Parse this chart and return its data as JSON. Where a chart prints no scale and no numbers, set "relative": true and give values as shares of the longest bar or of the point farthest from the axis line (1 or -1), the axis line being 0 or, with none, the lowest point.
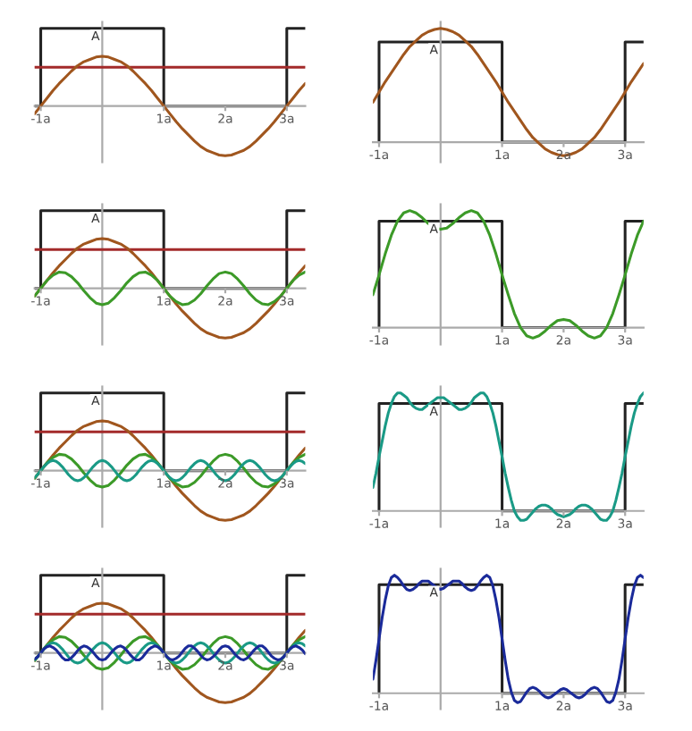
{
  "chart_data": [
    {
      "type": "line",
      "relative": true,
      "xlim": [
        -1.1,
        3.3
      ],
      "xticks": [
        {
          "value": -1,
          "label": "-1a"
        },
        {
          "value": 1,
          "label": "1a"
        },
        {
          "value": 2,
          "label": "2a"
        },
        {
          "value": 3,
          "label": "3a"
        }
      ],
      "annotations": [
        "A"
      ],
      "series": [
        {
          "color": "#222222",
          "x": [
            -1.1,
            -1,
            -1,
            1,
            1,
            3,
            3,
            3.3
          ],
          "values": [
            0,
            0,
            1,
            1,
            0,
            0,
            1,
            1
          ]
        },
        {
          "color": "#a32a2a",
          "x": [
            -1.1,
            3.3
          ],
          "values": [
            0.5,
            0.5
          ]
        },
        {
          "color": "#a0561e",
          "x": [
            -1.1,
            -1,
            -0.9,
            -0.8,
            -0.7,
            -0.6,
            -0.5,
            -0.4,
            -0.3,
            -0.2,
            -0.1,
            0,
            0.1,
            0.2,
            0.3,
            0.4,
            0.5,
            0.6,
            0.7,
            0.8,
            0.9,
            1,
            1.1,
            1.2,
            1.3,
            1.4,
            1.5,
            1.6,
            1.7,
            1.8,
            1.9,
            2,
            2.1,
            2.2,
            2.3,
            2.4,
            2.5,
            2.6,
            2.7,
            2.8,
            2.9,
            3,
            3.1,
            3.2,
            3.3
          ],
          "values": [
            -0.1,
            0,
            0.1,
            0.2,
            0.29,
            0.37,
            0.45,
            0.52,
            0.57,
            0.6,
            0.63,
            0.64,
            0.63,
            0.6,
            0.57,
            0.52,
            0.45,
            0.37,
            0.29,
            0.2,
            0.1,
            0,
            -0.1,
            -0.2,
            -0.29,
            -0.37,
            -0.45,
            -0.52,
            -0.57,
            -0.6,
            -0.63,
            -0.64,
            -0.63,
            -0.6,
            -0.57,
            -0.52,
            -0.45,
            -0.37,
            -0.29,
            -0.2,
            -0.1,
            0,
            0.1,
            0.2,
            0.29
          ]
        }
      ]
    },
    {
      "type": "line",
      "relative": true,
      "xlim": [
        -1.1,
        3.3
      ],
      "xticks": [
        {
          "value": -1,
          "label": "-1a"
        },
        {
          "value": 1,
          "label": "1a"
        },
        {
          "value": 2,
          "label": "2a"
        },
        {
          "value": 3,
          "label": "3a"
        }
      ],
      "annotations": [
        "A"
      ],
      "series": [
        {
          "color": "#222222",
          "x": [
            -1,
            -1,
            1,
            1,
            3,
            3,
            3.3
          ],
          "values": [
            0,
            0.88,
            0.88,
            0,
            0,
            0.88,
            0.88
          ]
        },
        {
          "color": "#a0561e",
          "x": [
            -1.1,
            -1,
            -0.9,
            -0.8,
            -0.7,
            -0.6,
            -0.5,
            -0.4,
            -0.3,
            -0.2,
            -0.1,
            0,
            0.1,
            0.2,
            0.3,
            0.4,
            0.5,
            0.6,
            0.7,
            0.8,
            0.9,
            1,
            1.1,
            1.2,
            1.3,
            1.4,
            1.5,
            1.6,
            1.7,
            1.8,
            1.9,
            2,
            2.1,
            2.2,
            2.3,
            2.4,
            2.5,
            2.6,
            2.7,
            2.8,
            2.9,
            3,
            3.1,
            3.2,
            3.3
          ],
          "values": [
            0.35,
            0.44,
            0.53,
            0.61,
            0.69,
            0.77,
            0.84,
            0.89,
            0.94,
            0.97,
            0.99,
            1,
            0.99,
            0.97,
            0.94,
            0.89,
            0.84,
            0.77,
            0.69,
            0.61,
            0.53,
            0.44,
            0.35,
            0.27,
            0.19,
            0.11,
            0.04,
            -0.01,
            -0.06,
            -0.09,
            -0.11,
            -0.12,
            -0.11,
            -0.09,
            -0.06,
            -0.01,
            0.04,
            0.11,
            0.19,
            0.27,
            0.35,
            0.44,
            0.53,
            0.61,
            0.69
          ]
        }
      ]
    },
    {
      "type": "line",
      "relative": true,
      "xlim": [
        -1.1,
        3.3
      ],
      "xticks": [
        {
          "value": -1,
          "label": "-1a"
        },
        {
          "value": 1,
          "label": "1a"
        },
        {
          "value": 2,
          "label": "2a"
        },
        {
          "value": 3,
          "label": "3a"
        }
      ],
      "annotations": [
        "A"
      ],
      "series": [
        {
          "color": "#222222",
          "x": [
            -1.1,
            -1,
            -1,
            1,
            1,
            3,
            3,
            3.3
          ],
          "values": [
            0,
            0,
            1,
            1,
            0,
            0,
            1,
            1
          ]
        },
        {
          "color": "#a32a2a",
          "x": [
            -1.1,
            3.3
          ],
          "values": [
            0.5,
            0.5
          ]
        },
        {
          "color": "#a0561e",
          "x": [
            -1.1,
            -1,
            -0.9,
            -0.8,
            -0.7,
            -0.6,
            -0.5,
            -0.4,
            -0.3,
            -0.2,
            -0.1,
            0,
            0.1,
            0.2,
            0.3,
            0.4,
            0.5,
            0.6,
            0.7,
            0.8,
            0.9,
            1,
            1.1,
            1.2,
            1.3,
            1.4,
            1.5,
            1.6,
            1.7,
            1.8,
            1.9,
            2,
            2.1,
            2.2,
            2.3,
            2.4,
            2.5,
            2.6,
            2.7,
            2.8,
            2.9,
            3,
            3.1,
            3.2,
            3.3
          ],
          "values": [
            -0.1,
            0,
            0.1,
            0.2,
            0.29,
            0.37,
            0.45,
            0.52,
            0.57,
            0.6,
            0.63,
            0.64,
            0.63,
            0.6,
            0.57,
            0.52,
            0.45,
            0.37,
            0.29,
            0.2,
            0.1,
            0,
            -0.1,
            -0.2,
            -0.29,
            -0.37,
            -0.45,
            -0.52,
            -0.57,
            -0.6,
            -0.63,
            -0.64,
            -0.63,
            -0.6,
            -0.57,
            -0.52,
            -0.45,
            -0.37,
            -0.29,
            -0.2,
            -0.1,
            0,
            0.1,
            0.2,
            0.29
          ]
        },
        {
          "color": "#3c9a28",
          "x": [
            -1.1,
            -1,
            -0.9,
            -0.8,
            -0.7,
            -0.6,
            -0.5,
            -0.4,
            -0.3,
            -0.2,
            -0.1,
            0,
            0.1,
            0.2,
            0.3,
            0.4,
            0.5,
            0.6,
            0.7,
            0.8,
            0.9,
            1,
            1.1,
            1.2,
            1.3,
            1.4,
            1.5,
            1.6,
            1.7,
            1.8,
            1.9,
            2,
            2.1,
            2.2,
            2.3,
            2.4,
            2.5,
            2.6,
            2.7,
            2.8,
            2.9,
            3,
            3.1,
            3.2,
            3.3
          ],
          "values": [
            -0.1,
            0,
            0.1,
            0.17,
            0.21,
            0.2,
            0.15,
            0.07,
            -0.03,
            -0.12,
            -0.19,
            -0.21,
            -0.19,
            -0.12,
            -0.03,
            0.07,
            0.15,
            0.2,
            0.21,
            0.17,
            0.1,
            0,
            -0.1,
            -0.17,
            -0.21,
            -0.2,
            -0.15,
            -0.07,
            0.03,
            0.12,
            0.19,
            0.21,
            0.19,
            0.12,
            0.03,
            -0.07,
            -0.15,
            -0.2,
            -0.21,
            -0.17,
            -0.1,
            0,
            0.1,
            0.17,
            0.21
          ]
        }
      ]
    },
    {
      "type": "line",
      "relative": true,
      "xlim": [
        -1.1,
        3.3
      ],
      "xticks": [
        {
          "value": -1,
          "label": "-1a"
        },
        {
          "value": 1,
          "label": "1a"
        },
        {
          "value": 2,
          "label": "2a"
        },
        {
          "value": 3,
          "label": "3a"
        }
      ],
      "annotations": [
        "A"
      ],
      "series": [
        {
          "color": "#222222",
          "x": [
            -1,
            -1,
            1,
            1,
            3,
            3,
            3.3
          ],
          "values": [
            0,
            0.91,
            0.91,
            0,
            0,
            0.91,
            0.91
          ]
        },
        {
          "color": "#3c9a28",
          "x": [
            -1.1,
            -1,
            -0.9,
            -0.8,
            -0.7,
            -0.6,
            -0.5,
            -0.4,
            -0.3,
            -0.2,
            -0.1,
            0,
            0.1,
            0.2,
            0.3,
            0.4,
            0.5,
            0.6,
            0.7,
            0.8,
            0.9,
            1,
            1.1,
            1.2,
            1.3,
            1.4,
            1.5,
            1.6,
            1.7,
            1.8,
            1.9,
            2,
            2.1,
            2.2,
            2.3,
            2.4,
            2.5,
            2.6,
            2.7,
            2.8,
            2.9,
            3,
            3.1,
            3.2,
            3.3
          ],
          "values": [
            0.28,
            0.45,
            0.63,
            0.79,
            0.91,
            0.98,
            1,
            0.98,
            0.94,
            0.89,
            0.85,
            0.84,
            0.85,
            0.89,
            0.94,
            0.98,
            1,
            0.98,
            0.91,
            0.79,
            0.63,
            0.45,
            0.28,
            0.12,
            0,
            -0.07,
            -0.09,
            -0.07,
            -0.03,
            0.02,
            0.06,
            0.07,
            0.06,
            0.02,
            -0.03,
            -0.07,
            -0.09,
            -0.07,
            0,
            0.12,
            0.28,
            0.45,
            0.63,
            0.79,
            0.91
          ]
        }
      ]
    },
    {
      "type": "line",
      "relative": true,
      "xlim": [
        -1.1,
        3.3
      ],
      "xticks": [
        {
          "value": -1,
          "label": "-1a"
        },
        {
          "value": 1,
          "label": "1a"
        },
        {
          "value": 2,
          "label": "2a"
        },
        {
          "value": 3,
          "label": "3a"
        }
      ],
      "annotations": [
        "A"
      ],
      "series": [
        {
          "color": "#222222",
          "x": [
            -1.1,
            -1,
            -1,
            1,
            1,
            3,
            3,
            3.3
          ],
          "values": [
            0,
            0,
            1,
            1,
            0,
            0,
            1,
            1
          ]
        },
        {
          "color": "#a32a2a",
          "x": [
            -1.1,
            3.3
          ],
          "values": [
            0.5,
            0.5
          ]
        },
        {
          "color": "#a0561e",
          "x": [
            -1.1,
            -1,
            -0.9,
            -0.8,
            -0.7,
            -0.6,
            -0.5,
            -0.4,
            -0.3,
            -0.2,
            -0.1,
            0,
            0.1,
            0.2,
            0.3,
            0.4,
            0.5,
            0.6,
            0.7,
            0.8,
            0.9,
            1,
            1.1,
            1.2,
            1.3,
            1.4,
            1.5,
            1.6,
            1.7,
            1.8,
            1.9,
            2,
            2.1,
            2.2,
            2.3,
            2.4,
            2.5,
            2.6,
            2.7,
            2.8,
            2.9,
            3,
            3.1,
            3.2,
            3.3
          ],
          "values": [
            -0.1,
            0,
            0.1,
            0.2,
            0.29,
            0.37,
            0.45,
            0.52,
            0.57,
            0.6,
            0.63,
            0.64,
            0.63,
            0.6,
            0.57,
            0.52,
            0.45,
            0.37,
            0.29,
            0.2,
            0.1,
            0,
            -0.1,
            -0.2,
            -0.29,
            -0.37,
            -0.45,
            -0.52,
            -0.57,
            -0.6,
            -0.63,
            -0.64,
            -0.63,
            -0.6,
            -0.57,
            -0.52,
            -0.45,
            -0.37,
            -0.29,
            -0.2,
            -0.1,
            0,
            0.1,
            0.2,
            0.29
          ]
        },
        {
          "color": "#3c9a28",
          "x": [
            -1.1,
            -1,
            -0.9,
            -0.8,
            -0.7,
            -0.6,
            -0.5,
            -0.4,
            -0.3,
            -0.2,
            -0.1,
            0,
            0.1,
            0.2,
            0.3,
            0.4,
            0.5,
            0.6,
            0.7,
            0.8,
            0.9,
            1,
            1.1,
            1.2,
            1.3,
            1.4,
            1.5,
            1.6,
            1.7,
            1.8,
            1.9,
            2,
            2.1,
            2.2,
            2.3,
            2.4,
            2.5,
            2.6,
            2.7,
            2.8,
            2.9,
            3,
            3.1,
            3.2,
            3.3
          ],
          "values": [
            -0.1,
            0,
            0.1,
            0.17,
            0.21,
            0.2,
            0.15,
            0.07,
            -0.03,
            -0.12,
            -0.19,
            -0.21,
            -0.19,
            -0.12,
            -0.03,
            0.07,
            0.15,
            0.2,
            0.21,
            0.17,
            0.1,
            0,
            -0.1,
            -0.17,
            -0.21,
            -0.2,
            -0.15,
            -0.07,
            0.03,
            0.12,
            0.19,
            0.21,
            0.19,
            0.12,
            0.03,
            -0.07,
            -0.15,
            -0.2,
            -0.21,
            -0.17,
            -0.1,
            0,
            0.1,
            0.17,
            0.21
          ]
        },
        {
          "color": "#1a9a86",
          "x": [
            -1.1,
            -1.05,
            -1,
            -0.95,
            -0.9,
            -0.85,
            -0.8,
            -0.75,
            -0.7,
            -0.65,
            -0.6,
            -0.55,
            -0.5,
            -0.45,
            -0.4,
            -0.35,
            -0.3,
            -0.25,
            -0.2,
            -0.15,
            -0.1,
            -0.05,
            0,
            0.05,
            0.1,
            0.15,
            0.2,
            0.25,
            0.3,
            0.35,
            0.4,
            0.45,
            0.5,
            0.55,
            0.6,
            0.65,
            0.7,
            0.75,
            0.8,
            0.85,
            0.9,
            0.95,
            1,
            1.05,
            1.1,
            1.15,
            1.2,
            1.25,
            1.3,
            1.35,
            1.4,
            1.45,
            1.5,
            1.55,
            1.6,
            1.65,
            1.7,
            1.75,
            1.8,
            1.85,
            1.9,
            1.95,
            2,
            2.05,
            2.1,
            2.15,
            2.2,
            2.25,
            2.3,
            2.35,
            2.4,
            2.45,
            2.5,
            2.55,
            2.6,
            2.65,
            2.7,
            2.75,
            2.8,
            2.85,
            2.9,
            2.95,
            3,
            3.05,
            3.1,
            3.15,
            3.2,
            3.25,
            3.3
          ],
          "values": [
            -0.09,
            -0.05,
            0,
            0.05,
            0.09,
            0.12,
            0.13,
            0.12,
            0.09,
            0.05,
            0,
            -0.05,
            -0.09,
            -0.12,
            -0.13,
            -0.12,
            -0.09,
            -0.05,
            0,
            0.05,
            0.09,
            0.12,
            0.13,
            0.12,
            0.09,
            0.05,
            0,
            -0.05,
            -0.09,
            -0.12,
            -0.13,
            -0.12,
            -0.09,
            -0.05,
            0,
            0.05,
            0.09,
            0.12,
            0.13,
            0.12,
            0.09,
            0.05,
            0,
            -0.05,
            -0.09,
            -0.12,
            -0.13,
            -0.12,
            -0.09,
            -0.05,
            0,
            0.05,
            0.09,
            0.12,
            0.13,
            0.12,
            0.09,
            0.05,
            0,
            -0.05,
            -0.09,
            -0.12,
            -0.13,
            -0.12,
            -0.09,
            -0.05,
            0,
            0.05,
            0.09,
            0.12,
            0.13,
            0.12,
            0.09,
            0.05,
            0,
            -0.05,
            -0.09,
            -0.12,
            -0.13,
            -0.12,
            -0.09,
            -0.05,
            0,
            0.05,
            0.09,
            0.12,
            0.13,
            0.12,
            0.09
          ]
        }
      ]
    },
    {
      "type": "line",
      "relative": true,
      "xlim": [
        -1.1,
        3.3
      ],
      "xticks": [
        {
          "value": -1,
          "label": "-1a"
        },
        {
          "value": 1,
          "label": "1a"
        },
        {
          "value": 2,
          "label": "2a"
        },
        {
          "value": 3,
          "label": "3a"
        }
      ],
      "annotations": [
        "A"
      ],
      "series": [
        {
          "color": "#222222",
          "x": [
            -1,
            -1,
            1,
            1,
            3,
            3,
            3.3
          ],
          "values": [
            0,
            0.91,
            0.91,
            0,
            0,
            0.91,
            0.91
          ]
        },
        {
          "color": "#1a9a86",
          "x": [
            -1.1,
            -1.05,
            -1,
            -0.95,
            -0.9,
            -0.85,
            -0.8,
            -0.75,
            -0.7,
            -0.65,
            -0.6,
            -0.55,
            -0.5,
            -0.45,
            -0.4,
            -0.35,
            -0.3,
            -0.25,
            -0.2,
            -0.15,
            -0.1,
            -0.05,
            0,
            0.05,
            0.1,
            0.15,
            0.2,
            0.25,
            0.3,
            0.35,
            0.4,
            0.45,
            0.5,
            0.55,
            0.6,
            0.65,
            0.7,
            0.75,
            0.8,
            0.85,
            0.9,
            0.95,
            1,
            1.05,
            1.1,
            1.15,
            1.2,
            1.25,
            1.3,
            1.35,
            1.4,
            1.45,
            1.5,
            1.55,
            1.6,
            1.65,
            1.7,
            1.75,
            1.8,
            1.85,
            1.9,
            1.95,
            2,
            2.05,
            2.1,
            2.15,
            2.2,
            2.25,
            2.3,
            2.35,
            2.4,
            2.45,
            2.5,
            2.55,
            2.6,
            2.65,
            2.7,
            2.75,
            2.8,
            2.85,
            2.9,
            2.95,
            3,
            3.05,
            3.1,
            3.15,
            3.2,
            3.25,
            3.3
          ],
          "values": [
            0.2,
            0.32,
            0.46,
            0.59,
            0.72,
            0.83,
            0.91,
            0.97,
            1,
            1,
            0.98,
            0.96,
            0.92,
            0.89,
            0.87,
            0.86,
            0.86,
            0.88,
            0.9,
            0.92,
            0.94,
            0.96,
            0.96,
            0.96,
            0.94,
            0.92,
            0.9,
            0.88,
            0.86,
            0.86,
            0.87,
            0.89,
            0.92,
            0.96,
            0.98,
            1,
            1,
            0.97,
            0.91,
            0.83,
            0.72,
            0.59,
            0.46,
            0.32,
            0.2,
            0.09,
            0,
            -0.05,
            -0.08,
            -0.08,
            -0.07,
            -0.04,
            -0.01,
            0.02,
            0.04,
            0.05,
            0.05,
            0.04,
            0.02,
            -0.01,
            -0.03,
            -0.04,
            -0.05,
            -0.04,
            -0.03,
            -0.01,
            0.02,
            0.04,
            0.05,
            0.05,
            0.04,
            0.02,
            -0.01,
            -0.04,
            -0.07,
            -0.08,
            -0.08,
            -0.05,
            0,
            0.09,
            0.2,
            0.32,
            0.46,
            0.59,
            0.72,
            0.83,
            0.91,
            0.97,
            1
          ]
        }
      ]
    },
    {
      "type": "line",
      "relative": true,
      "xlim": [
        -1.1,
        3.3
      ],
      "xticks": [
        {
          "value": -1,
          "label": "-1a"
        },
        {
          "value": 1,
          "label": "1a"
        },
        {
          "value": 2,
          "label": "2a"
        },
        {
          "value": 3,
          "label": "3a"
        }
      ],
      "annotations": [
        "A"
      ],
      "series": [
        {
          "color": "#222222",
          "x": [
            -1.1,
            -1,
            -1,
            1,
            1,
            3,
            3,
            3.3
          ],
          "values": [
            0,
            0,
            1,
            1,
            0,
            0,
            1,
            1
          ]
        },
        {
          "color": "#a32a2a",
          "x": [
            -1.1,
            3.3
          ],
          "values": [
            0.5,
            0.5
          ]
        },
        {
          "color": "#a0561e",
          "x": [
            -1.1,
            -1,
            -0.9,
            -0.8,
            -0.7,
            -0.6,
            -0.5,
            -0.4,
            -0.3,
            -0.2,
            -0.1,
            0,
            0.1,
            0.2,
            0.3,
            0.4,
            0.5,
            0.6,
            0.7,
            0.8,
            0.9,
            1,
            1.1,
            1.2,
            1.3,
            1.4,
            1.5,
            1.6,
            1.7,
            1.8,
            1.9,
            2,
            2.1,
            2.2,
            2.3,
            2.4,
            2.5,
            2.6,
            2.7,
            2.8,
            2.9,
            3,
            3.1,
            3.2,
            3.3
          ],
          "values": [
            -0.1,
            0,
            0.1,
            0.2,
            0.29,
            0.37,
            0.45,
            0.52,
            0.57,
            0.6,
            0.63,
            0.64,
            0.63,
            0.6,
            0.57,
            0.52,
            0.45,
            0.37,
            0.29,
            0.2,
            0.1,
            0,
            -0.1,
            -0.2,
            -0.29,
            -0.37,
            -0.45,
            -0.52,
            -0.57,
            -0.6,
            -0.63,
            -0.64,
            -0.63,
            -0.6,
            -0.57,
            -0.52,
            -0.45,
            -0.37,
            -0.29,
            -0.2,
            -0.1,
            0,
            0.1,
            0.2,
            0.29
          ]
        },
        {
          "color": "#3c9a28",
          "x": [
            -1.1,
            -1,
            -0.9,
            -0.8,
            -0.7,
            -0.6,
            -0.5,
            -0.4,
            -0.3,
            -0.2,
            -0.1,
            0,
            0.1,
            0.2,
            0.3,
            0.4,
            0.5,
            0.6,
            0.7,
            0.8,
            0.9,
            1,
            1.1,
            1.2,
            1.3,
            1.4,
            1.5,
            1.6,
            1.7,
            1.8,
            1.9,
            2,
            2.1,
            2.2,
            2.3,
            2.4,
            2.5,
            2.6,
            2.7,
            2.8,
            2.9,
            3,
            3.1,
            3.2,
            3.3
          ],
          "values": [
            -0.1,
            0,
            0.1,
            0.17,
            0.21,
            0.2,
            0.15,
            0.07,
            -0.03,
            -0.12,
            -0.19,
            -0.21,
            -0.19,
            -0.12,
            -0.03,
            0.07,
            0.15,
            0.2,
            0.21,
            0.17,
            0.1,
            0,
            -0.1,
            -0.17,
            -0.21,
            -0.2,
            -0.15,
            -0.07,
            0.03,
            0.12,
            0.19,
            0.21,
            0.19,
            0.12,
            0.03,
            -0.07,
            -0.15,
            -0.2,
            -0.21,
            -0.17,
            -0.1,
            0,
            0.1,
            0.17,
            0.21
          ]
        },
        {
          "color": "#1a9a86",
          "x": [
            -1.1,
            -1.05,
            -1,
            -0.95,
            -0.9,
            -0.85,
            -0.8,
            -0.75,
            -0.7,
            -0.65,
            -0.6,
            -0.55,
            -0.5,
            -0.45,
            -0.4,
            -0.35,
            -0.3,
            -0.25,
            -0.2,
            -0.15,
            -0.1,
            -0.05,
            0,
            0.05,
            0.1,
            0.15,
            0.2,
            0.25,
            0.3,
            0.35,
            0.4,
            0.45,
            0.5,
            0.55,
            0.6,
            0.65,
            0.7,
            0.75,
            0.8,
            0.85,
            0.9,
            0.95,
            1,
            1.05,
            1.1,
            1.15,
            1.2,
            1.25,
            1.3,
            1.35,
            1.4,
            1.45,
            1.5,
            1.55,
            1.6,
            1.65,
            1.7,
            1.75,
            1.8,
            1.85,
            1.9,
            1.95,
            2,
            2.05,
            2.1,
            2.15,
            2.2,
            2.25,
            2.3,
            2.35,
            2.4,
            2.45,
            2.5,
            2.55,
            2.6,
            2.65,
            2.7,
            2.75,
            2.8,
            2.85,
            2.9,
            2.95,
            3,
            3.05,
            3.1,
            3.15,
            3.2,
            3.25,
            3.3
          ],
          "values": [
            -0.09,
            -0.05,
            0,
            0.05,
            0.09,
            0.12,
            0.13,
            0.12,
            0.09,
            0.05,
            0,
            -0.05,
            -0.09,
            -0.12,
            -0.13,
            -0.12,
            -0.09,
            -0.05,
            0,
            0.05,
            0.09,
            0.12,
            0.13,
            0.12,
            0.09,
            0.05,
            0,
            -0.05,
            -0.09,
            -0.12,
            -0.13,
            -0.12,
            -0.09,
            -0.05,
            0,
            0.05,
            0.09,
            0.12,
            0.13,
            0.12,
            0.09,
            0.05,
            0,
            -0.05,
            -0.09,
            -0.12,
            -0.13,
            -0.12,
            -0.09,
            -0.05,
            0,
            0.05,
            0.09,
            0.12,
            0.13,
            0.12,
            0.09,
            0.05,
            0,
            -0.05,
            -0.09,
            -0.12,
            -0.13,
            -0.12,
            -0.09,
            -0.05,
            0,
            0.05,
            0.09,
            0.12,
            0.13,
            0.12,
            0.09,
            0.05,
            0,
            -0.05,
            -0.09,
            -0.12,
            -0.13,
            -0.12,
            -0.09,
            -0.05,
            0,
            0.05,
            0.09,
            0.12,
            0.13,
            0.12,
            0.09
          ]
        },
        {
          "color": "#1a2a9a",
          "x": [
            -1.1,
            -1.05,
            -1,
            -0.95,
            -0.9,
            -0.85,
            -0.8,
            -0.75,
            -0.7,
            -0.65,
            -0.6,
            -0.55,
            -0.5,
            -0.45,
            -0.4,
            -0.35,
            -0.3,
            -0.25,
            -0.2,
            -0.15,
            -0.1,
            -0.05,
            0,
            0.05,
            0.1,
            0.15,
            0.2,
            0.25,
            0.3,
            0.35,
            0.4,
            0.45,
            0.5,
            0.55,
            0.6,
            0.65,
            0.7,
            0.75,
            0.8,
            0.85,
            0.9,
            0.95,
            1,
            1.05,
            1.1,
            1.15,
            1.2,
            1.25,
            1.3,
            1.35,
            1.4,
            1.45,
            1.5,
            1.55,
            1.6,
            1.65,
            1.7,
            1.75,
            1.8,
            1.85,
            1.9,
            1.95,
            2,
            2.05,
            2.1,
            2.15,
            2.2,
            2.25,
            2.3,
            2.35,
            2.4,
            2.45,
            2.5,
            2.55,
            2.6,
            2.65,
            2.7,
            2.75,
            2.8,
            2.85,
            2.9,
            2.95,
            3,
            3.05,
            3.1,
            3.15,
            3.2,
            3.25,
            3.3
          ],
          "values": [
            -0.08,
            -0.05,
            0,
            0.05,
            0.08,
            0.09,
            0.07,
            0.04,
            -0.01,
            -0.06,
            -0.09,
            -0.09,
            -0.06,
            -0.02,
            0.03,
            0.07,
            0.09,
            0.08,
            0.05,
            0.01,
            -0.04,
            -0.08,
            -0.09,
            -0.08,
            -0.04,
            0.01,
            0.05,
            0.08,
            0.09,
            0.07,
            0.03,
            -0.02,
            -0.06,
            -0.09,
            -0.09,
            -0.06,
            -0.01,
            0.04,
            0.07,
            0.09,
            0.08,
            0.05,
            0,
            -0.05,
            -0.08,
            -0.09,
            -0.07,
            -0.04,
            0.01,
            0.06,
            0.09,
            0.09,
            0.06,
            0.02,
            -0.03,
            -0.07,
            -0.09,
            -0.08,
            -0.05,
            -0.01,
            0.04,
            0.08,
            0.09,
            0.08,
            0.04,
            -0.01,
            -0.05,
            -0.08,
            -0.09,
            -0.07,
            -0.03,
            0.02,
            0.06,
            0.09,
            0.09,
            0.06,
            0.01,
            -0.04,
            -0.07,
            -0.09,
            -0.08,
            -0.05,
            0,
            0.05,
            0.08,
            0.09,
            0.07,
            0.04,
            -0.01
          ]
        }
      ]
    },
    {
      "type": "line",
      "relative": true,
      "xlim": [
        -1.1,
        3.3
      ],
      "xticks": [
        {
          "value": -1,
          "label": "-1a"
        },
        {
          "value": 1,
          "label": "1a"
        },
        {
          "value": 2,
          "label": "2a"
        },
        {
          "value": 3,
          "label": "3a"
        }
      ],
      "annotations": [
        "A"
      ],
      "series": [
        {
          "color": "#222222",
          "x": [
            -1,
            -1,
            1,
            1,
            3,
            3,
            3.3
          ],
          "values": [
            0,
            0.92,
            0.92,
            0,
            0,
            0.92,
            0.92
          ]
        },
        {
          "color": "#1a2a9a",
          "x": [
            -1.1,
            -1.05,
            -1,
            -0.95,
            -0.9,
            -0.85,
            -0.8,
            -0.75,
            -0.7,
            -0.65,
            -0.6,
            -0.55,
            -0.5,
            -0.45,
            -0.4,
            -0.35,
            -0.3,
            -0.25,
            -0.2,
            -0.15,
            -0.1,
            -0.05,
            0,
            0.05,
            0.1,
            0.15,
            0.2,
            0.25,
            0.3,
            0.35,
            0.4,
            0.45,
            0.5,
            0.55,
            0.6,
            0.65,
            0.7,
            0.75,
            0.8,
            0.85,
            0.9,
            0.95,
            1,
            1.05,
            1.1,
            1.15,
            1.2,
            1.25,
            1.3,
            1.35,
            1.4,
            1.45,
            1.5,
            1.55,
            1.6,
            1.65,
            1.7,
            1.75,
            1.8,
            1.85,
            1.9,
            1.95,
            2,
            2.05,
            2.1,
            2.15,
            2.2,
            2.25,
            2.3,
            2.35,
            2.4,
            2.45,
            2.5,
            2.55,
            2.6,
            2.65,
            2.7,
            2.75,
            2.8,
            2.85,
            2.9,
            2.95,
            3,
            3.05,
            3.1,
            3.15,
            3.2,
            3.25,
            3.3
          ],
          "values": [
            0.12,
            0.28,
            0.46,
            0.64,
            0.79,
            0.91,
            0.98,
            1,
            0.98,
            0.95,
            0.91,
            0.88,
            0.87,
            0.88,
            0.9,
            0.93,
            0.95,
            0.95,
            0.95,
            0.93,
            0.91,
            0.89,
            0.88,
            0.89,
            0.91,
            0.93,
            0.95,
            0.95,
            0.95,
            0.93,
            0.9,
            0.88,
            0.87,
            0.88,
            0.91,
            0.95,
            0.98,
            1,
            0.98,
            0.91,
            0.79,
            0.64,
            0.46,
            0.28,
            0.12,
            0.01,
            -0.06,
            -0.08,
            -0.07,
            -0.03,
            0.01,
            0.04,
            0.05,
            0.04,
            0.02,
            -0.01,
            -0.03,
            -0.04,
            -0.03,
            -0.01,
            0.01,
            0.03,
            0.04,
            0.03,
            0.01,
            -0.01,
            -0.03,
            -0.04,
            -0.03,
            -0.01,
            0.02,
            0.04,
            0.05,
            0.04,
            0.01,
            -0.03,
            -0.07,
            -0.08,
            -0.06,
            0.01,
            0.12,
            0.28,
            0.46,
            0.64,
            0.79,
            0.91,
            0.98,
            1,
            0.98
          ]
        }
      ]
    }
  ]
}
